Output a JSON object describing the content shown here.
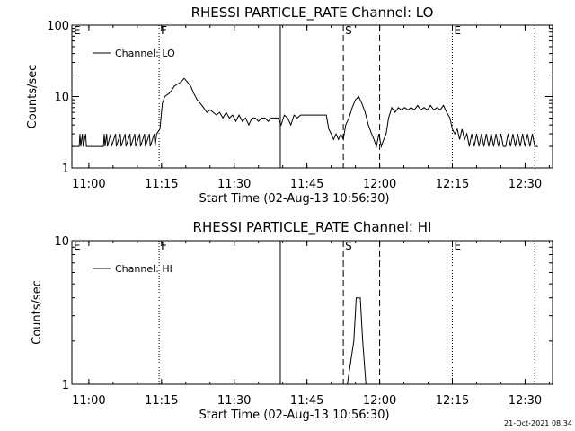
{
  "timestamp": "21-Oct-2021 08:34",
  "chart_data": [
    {
      "type": "line",
      "title": "RHESSI PARTICLE_RATE Channel: LO",
      "xlabel": "Start Time (02-Aug-13 10:56:30)",
      "ylabel": "Counts/sec",
      "yscale": "log",
      "ylim": [
        1,
        100
      ],
      "xlim": [
        "10:56:30",
        "12:35:40"
      ],
      "xticks": [
        "11:00",
        "11:15",
        "11:30",
        "11:45",
        "12:00",
        "12:15",
        "12:30"
      ],
      "yticks": [
        "1",
        "10",
        "100"
      ],
      "legend": {
        "label": "Channel: LO",
        "position": "top-left"
      },
      "annotations": [
        {
          "time": "11:14:30",
          "label": "F",
          "style": "dotted"
        },
        {
          "time": "11:39:30",
          "label": "",
          "style": "solid"
        },
        {
          "time": "11:52:30",
          "label": "S",
          "style": "dashed"
        },
        {
          "time": "12:00:00",
          "label": "",
          "style": "dashed"
        },
        {
          "time": "12:15:00",
          "label": "E",
          "style": "dotted"
        },
        {
          "time": "12:32:00",
          "label": "",
          "style": "dotted"
        },
        {
          "time": "10:56:30",
          "label": "E",
          "style": "none"
        }
      ],
      "series": [
        {
          "name": "Channel: LO",
          "points": [
            [
              "10:56:30",
              2
            ],
            [
              "10:58:00",
              2
            ],
            [
              "10:58:10",
              3
            ],
            [
              "10:58:20",
              2
            ],
            [
              "10:58:40",
              3
            ],
            [
              "10:58:50",
              2
            ],
            [
              "10:59:20",
              3
            ],
            [
              "10:59:30",
              2
            ],
            [
              "11:00:00",
              2
            ],
            [
              "11:03:00",
              2
            ],
            [
              "11:03:10",
              3
            ],
            [
              "11:03:20",
              2
            ],
            [
              "11:03:40",
              3
            ],
            [
              "11:03:50",
              2
            ],
            [
              "11:04:30",
              3
            ],
            [
              "11:04:40",
              2
            ],
            [
              "11:05:30",
              3
            ],
            [
              "11:05:40",
              2
            ],
            [
              "11:06:30",
              3
            ],
            [
              "11:06:40",
              2
            ],
            [
              "11:07:30",
              3
            ],
            [
              "11:07:40",
              2
            ],
            [
              "11:08:30",
              3
            ],
            [
              "11:08:40",
              2
            ],
            [
              "11:09:30",
              3
            ],
            [
              "11:09:40",
              2
            ],
            [
              "11:10:30",
              3
            ],
            [
              "11:10:40",
              2
            ],
            [
              "11:11:30",
              3
            ],
            [
              "11:11:40",
              2
            ],
            [
              "11:12:30",
              3
            ],
            [
              "11:12:40",
              2
            ],
            [
              "11:13:30",
              3
            ],
            [
              "11:13:40",
              2
            ],
            [
              "11:14:00",
              3
            ],
            [
              "11:14:40",
              3.5
            ],
            [
              "11:15:10",
              8
            ],
            [
              "11:15:40",
              10
            ],
            [
              "11:16:30",
              11
            ],
            [
              "11:17:00",
              12
            ],
            [
              "11:17:40",
              14
            ],
            [
              "11:18:20",
              15
            ],
            [
              "11:19:00",
              16
            ],
            [
              "11:19:40",
              18
            ],
            [
              "11:20:20",
              16
            ],
            [
              "11:21:00",
              14
            ],
            [
              "11:21:40",
              11
            ],
            [
              "11:22:20",
              9
            ],
            [
              "11:23:00",
              8
            ],
            [
              "11:23:40",
              7
            ],
            [
              "11:24:20",
              6
            ],
            [
              "11:25:00",
              6.5
            ],
            [
              "11:25:40",
              6
            ],
            [
              "11:26:20",
              5.5
            ],
            [
              "11:27:00",
              6
            ],
            [
              "11:27:40",
              5
            ],
            [
              "11:28:20",
              6
            ],
            [
              "11:29:00",
              5
            ],
            [
              "11:29:40",
              5.5
            ],
            [
              "11:30:20",
              4.5
            ],
            [
              "11:31:00",
              5.5
            ],
            [
              "11:31:40",
              4.5
            ],
            [
              "11:32:20",
              5
            ],
            [
              "11:33:00",
              4
            ],
            [
              "11:33:40",
              5
            ],
            [
              "11:34:20",
              5
            ],
            [
              "11:35:00",
              4.5
            ],
            [
              "11:35:40",
              5
            ],
            [
              "11:36:20",
              5
            ],
            [
              "11:37:00",
              4.5
            ],
            [
              "11:37:40",
              5
            ],
            [
              "11:38:20",
              5
            ],
            [
              "11:39:00",
              5
            ],
            [
              "11:39:40",
              4
            ],
            [
              "11:40:20",
              5.5
            ],
            [
              "11:41:00",
              5
            ],
            [
              "11:41:40",
              4
            ],
            [
              "11:42:20",
              5.5
            ],
            [
              "11:43:00",
              5
            ],
            [
              "11:43:40",
              5.5
            ],
            [
              "11:44:20",
              5.5
            ],
            [
              "11:45:00",
              5.5
            ],
            [
              "11:46:00",
              5.5
            ],
            [
              "11:47:00",
              5.5
            ],
            [
              "11:48:00",
              5.5
            ],
            [
              "11:49:00",
              5.5
            ],
            [
              "11:49:30",
              3.5
            ],
            [
              "11:50:00",
              3
            ],
            [
              "11:50:30",
              2.5
            ],
            [
              "11:51:00",
              3
            ],
            [
              "11:51:30",
              2.5
            ],
            [
              "11:52:00",
              3
            ],
            [
              "11:52:30",
              2.5
            ],
            [
              "11:53:00",
              4
            ],
            [
              "11:53:40",
              5
            ],
            [
              "11:54:20",
              7
            ],
            [
              "11:55:00",
              9
            ],
            [
              "11:55:40",
              10
            ],
            [
              "11:56:20",
              8
            ],
            [
              "11:57:00",
              6
            ],
            [
              "11:57:40",
              4
            ],
            [
              "11:58:20",
              3
            ],
            [
              "11:58:50",
              2.5
            ],
            [
              "11:59:20",
              2
            ],
            [
              "11:59:50",
              3
            ],
            [
              "12:00:20",
              2
            ],
            [
              "12:00:50",
              2.5
            ],
            [
              "12:01:20",
              3
            ],
            [
              "12:01:50",
              5
            ],
            [
              "12:02:30",
              7
            ],
            [
              "12:03:10",
              6
            ],
            [
              "12:03:50",
              7
            ],
            [
              "12:04:30",
              6.5
            ],
            [
              "12:05:10",
              7
            ],
            [
              "12:05:50",
              6.5
            ],
            [
              "12:06:30",
              7
            ],
            [
              "12:07:10",
              6.5
            ],
            [
              "12:07:50",
              7.5
            ],
            [
              "12:08:30",
              6.5
            ],
            [
              "12:09:10",
              7
            ],
            [
              "12:09:50",
              6.5
            ],
            [
              "12:10:30",
              7.5
            ],
            [
              "12:11:10",
              6.5
            ],
            [
              "12:11:50",
              7
            ],
            [
              "12:12:30",
              6.5
            ],
            [
              "12:13:10",
              7.5
            ],
            [
              "12:13:50",
              6
            ],
            [
              "12:14:30",
              5
            ],
            [
              "12:15:00",
              3.5
            ],
            [
              "12:15:30",
              3
            ],
            [
              "12:16:00",
              3.5
            ],
            [
              "12:16:30",
              2.5
            ],
            [
              "12:17:00",
              3.5
            ],
            [
              "12:17:30",
              2.5
            ],
            [
              "12:18:00",
              3
            ],
            [
              "12:18:30",
              2
            ],
            [
              "12:19:00",
              3
            ],
            [
              "12:19:30",
              2
            ],
            [
              "12:20:00",
              3
            ],
            [
              "12:20:30",
              2
            ],
            [
              "12:21:00",
              3
            ],
            [
              "12:21:30",
              2
            ],
            [
              "12:22:00",
              3
            ],
            [
              "12:22:30",
              2
            ],
            [
              "12:23:00",
              3
            ],
            [
              "12:23:30",
              2
            ],
            [
              "12:24:00",
              3
            ],
            [
              "12:24:30",
              2
            ],
            [
              "12:25:00",
              3
            ],
            [
              "12:25:30",
              2
            ],
            [
              "12:26:00",
              2
            ],
            [
              "12:26:30",
              3
            ],
            [
              "12:27:00",
              2
            ],
            [
              "12:27:30",
              3
            ],
            [
              "12:28:00",
              2
            ],
            [
              "12:28:30",
              3
            ],
            [
              "12:29:00",
              2
            ],
            [
              "12:29:30",
              3
            ],
            [
              "12:30:00",
              2
            ],
            [
              "12:30:30",
              3
            ],
            [
              "12:31:00",
              2
            ],
            [
              "12:31:30",
              3
            ],
            [
              "12:32:00",
              2
            ],
            [
              "12:32:40",
              2
            ]
          ]
        }
      ]
    },
    {
      "type": "line",
      "title": "RHESSI PARTICLE_RATE Channel: HI",
      "xlabel": "Start Time (02-Aug-13 10:56:30)",
      "ylabel": "Counts/sec",
      "yscale": "log",
      "ylim": [
        1,
        10
      ],
      "xlim": [
        "10:56:30",
        "12:35:40"
      ],
      "xticks": [
        "11:00",
        "11:15",
        "11:30",
        "11:45",
        "12:00",
        "12:15",
        "12:30"
      ],
      "yticks": [
        "1",
        "10"
      ],
      "legend": {
        "label": "Channel: HI",
        "position": "top-left"
      },
      "annotations": [
        {
          "time": "11:14:30",
          "label": "F",
          "style": "dotted"
        },
        {
          "time": "11:39:30",
          "label": "",
          "style": "solid"
        },
        {
          "time": "11:52:30",
          "label": "S",
          "style": "dashed"
        },
        {
          "time": "12:00:00",
          "label": "",
          "style": "dashed"
        },
        {
          "time": "12:15:00",
          "label": "E",
          "style": "dotted"
        },
        {
          "time": "12:32:00",
          "label": "",
          "style": "dotted"
        },
        {
          "time": "10:56:30",
          "label": "E",
          "style": "none"
        }
      ],
      "series": [
        {
          "name": "Channel: HI",
          "points": [
            [
              "11:53:20",
              1
            ],
            [
              "11:54:40",
              2
            ],
            [
              "11:55:10",
              4
            ],
            [
              "11:56:00",
              4
            ],
            [
              "11:56:30",
              2
            ],
            [
              "11:57:10",
              1
            ]
          ]
        }
      ]
    }
  ]
}
